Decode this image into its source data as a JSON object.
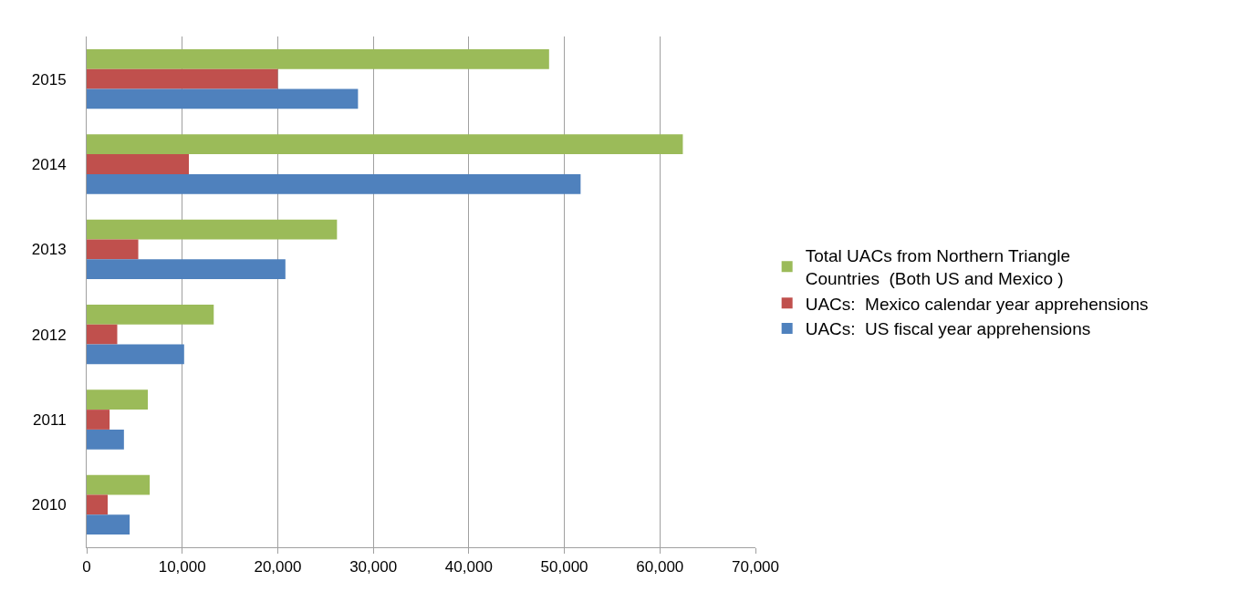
{
  "chart_data": {
    "type": "bar",
    "orientation": "horizontal",
    "categories": [
      "2015",
      "2014",
      "2013",
      "2012",
      "2011",
      "2010"
    ],
    "series": [
      {
        "name": "Total UACs from Northern Triangle Countries  (Both US and Mexico )",
        "color": "#9bbb59",
        "values": [
          48400,
          62400,
          26200,
          13300,
          6400,
          6600
        ]
      },
      {
        "name": "UACs:  Mexico calendar year apprehensions",
        "color": "#c0504d",
        "values": [
          20000,
          10700,
          5400,
          3200,
          2400,
          2200
        ]
      },
      {
        "name": "UACs:  US fiscal year apprehensions",
        "color": "#4f81bd",
        "values": [
          28400,
          51700,
          20800,
          10200,
          3900,
          4500
        ]
      }
    ],
    "xlim": [
      0,
      70000
    ],
    "xticks": [
      0,
      {
        "value": 10000,
        "label": "10,000"
      },
      {
        "value": 20000,
        "label": "20,000"
      },
      {
        "value": 30000,
        "label": "30,000"
      },
      {
        "value": 40000,
        "label": "40,000"
      },
      {
        "value": 50000,
        "label": "50,000"
      },
      {
        "value": 60000,
        "label": "60,000"
      },
      {
        "value": 70000,
        "label": "70,000"
      }
    ],
    "grid": "x",
    "legend": "right"
  }
}
